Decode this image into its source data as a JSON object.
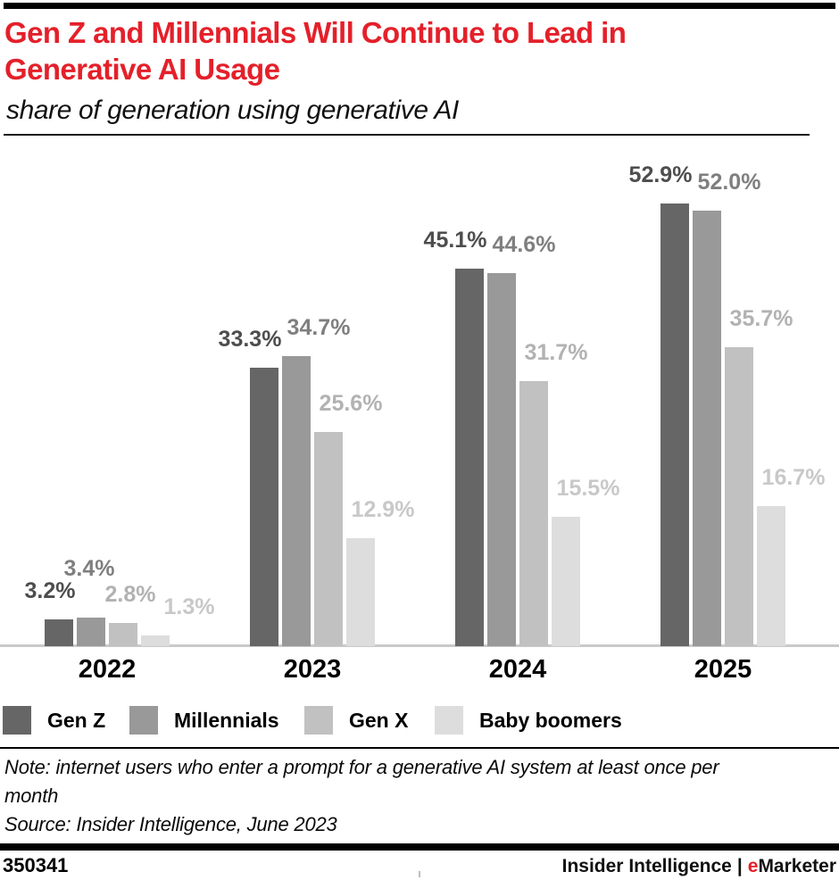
{
  "header": {
    "title_lines": [
      "Gen Z and Millennials Will Continue to Lead in",
      "Generative AI Usage"
    ],
    "subtitle": "share of generation using generative AI",
    "title_color": "#e4202a"
  },
  "chart_data": {
    "type": "bar",
    "title": "Gen Z and Millennials Will Continue to Lead in Generative AI Usage",
    "subtitle": "share of generation using generative AI",
    "categories": [
      "2022",
      "2023",
      "2024",
      "2025"
    ],
    "series": [
      {
        "name": "Gen Z",
        "color": "#666666",
        "label_color": "#4d4d4d",
        "values": [
          3.2,
          33.3,
          45.1,
          52.9
        ]
      },
      {
        "name": "Millennials",
        "color": "#999999",
        "label_color": "#7f7f7f",
        "values": [
          3.4,
          34.7,
          44.6,
          52.0
        ]
      },
      {
        "name": "Gen X",
        "color": "#c1c1c1",
        "label_color": "#b2b2b2",
        "values": [
          2.8,
          25.6,
          31.7,
          35.7
        ]
      },
      {
        "name": "Baby boomers",
        "color": "#dddddd",
        "label_color": "#c8c8c8",
        "values": [
          1.3,
          12.9,
          15.5,
          16.7
        ]
      }
    ],
    "value_suffix": "%",
    "value_decimals": 1,
    "ylim": [
      0,
      60
    ],
    "y_axis_visible": false,
    "grid": false,
    "legend_position": "bottom"
  },
  "footnote": {
    "note_lines": [
      "Note: internet users who enter a prompt for a generative AI system at least once per",
      "month"
    ],
    "source": "Source: Insider Intelligence, June 2023"
  },
  "footer": {
    "chart_id": "350341",
    "brand_left": "Insider Intelligence",
    "brand_separator": "|",
    "brand_right_accent": "e",
    "brand_right_rest": "Marketer",
    "accent_color": "#e4202a"
  }
}
